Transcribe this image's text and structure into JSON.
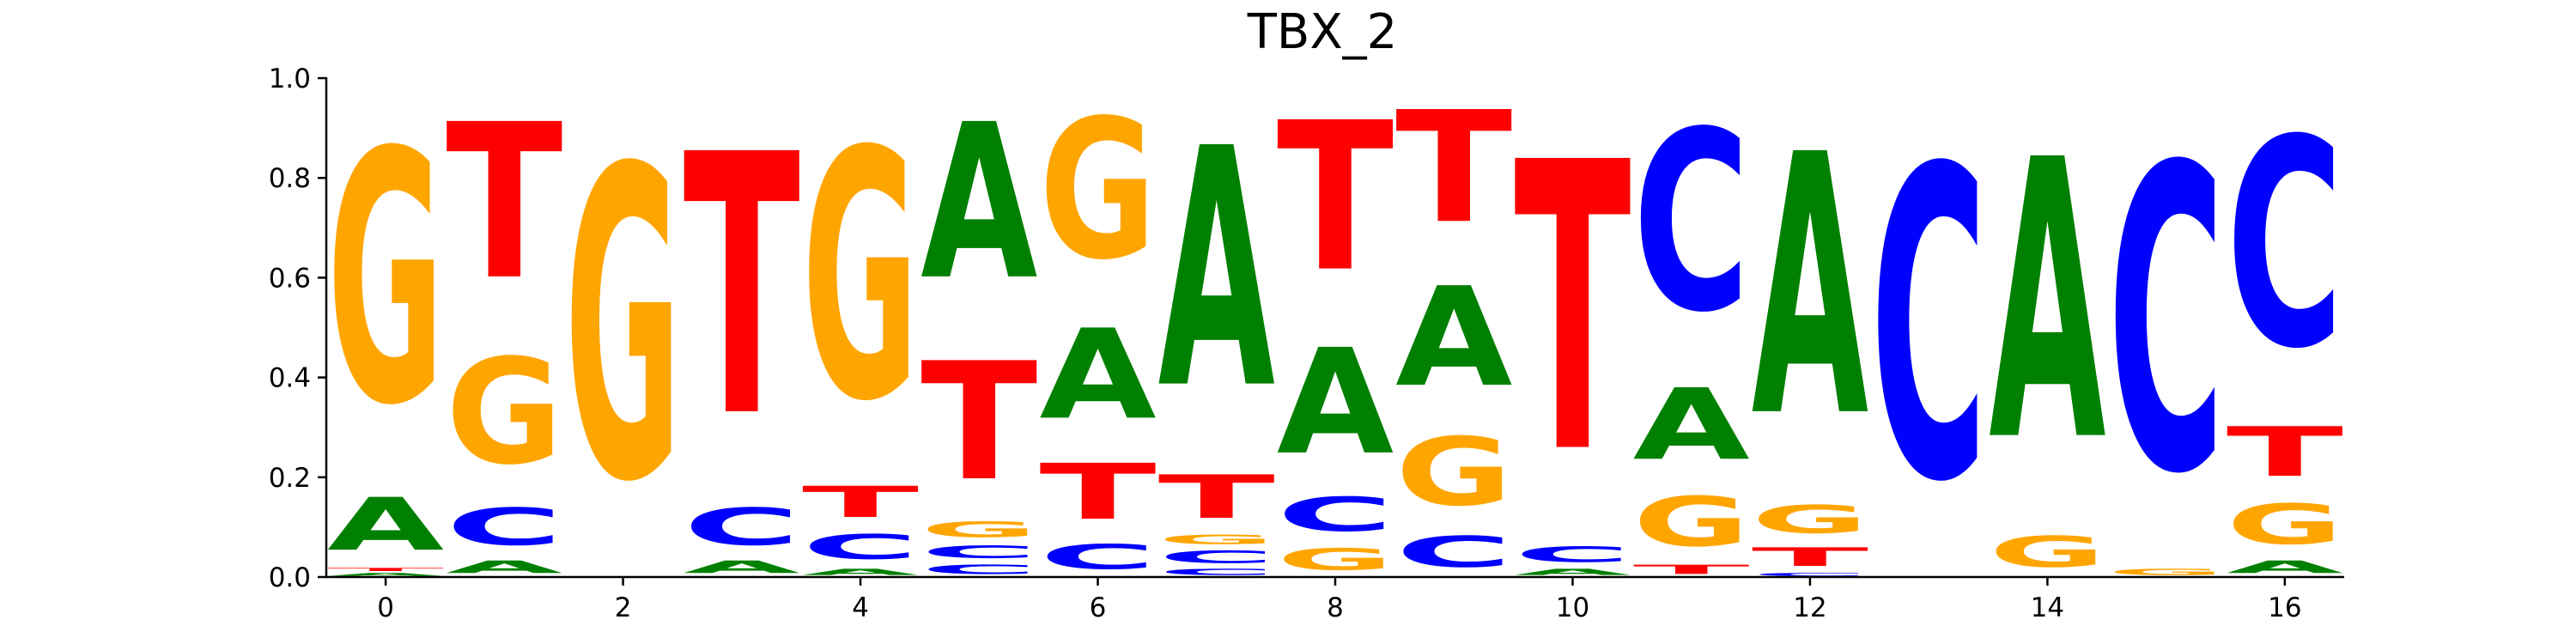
{
  "chart_data": {
    "type": "sequence-logo",
    "title": "TBX_2",
    "xlabel": "",
    "ylabel": "",
    "ylim": [
      0,
      1
    ],
    "xlim": [
      -0.5,
      16.5
    ],
    "x_ticks": [
      0,
      2,
      4,
      6,
      8,
      10,
      12,
      14,
      16
    ],
    "y_ticks": [
      "0.0",
      "0.2",
      "0.4",
      "0.6",
      "0.8",
      "1.0"
    ],
    "grid": false,
    "colors": {
      "A": "#008000",
      "C": "#0000ff",
      "G": "#ffa500",
      "T": "#ff0000"
    },
    "positions": [
      {
        "x": 0,
        "stack": [
          [
            "A",
            0.01
          ],
          [
            "T",
            0.01
          ],
          [
            "A",
            0.17
          ],
          [
            "G",
            0.81
          ]
        ]
      },
      {
        "x": 1,
        "stack": [
          [
            "A",
            0.04
          ],
          [
            "C",
            0.12
          ],
          [
            "G",
            0.34
          ],
          [
            "T",
            0.5
          ]
        ]
      },
      {
        "x": 2,
        "stack": [
          [
            "G",
            1.0
          ]
        ]
      },
      {
        "x": 3,
        "stack": [
          [
            "A",
            0.04
          ],
          [
            "C",
            0.12
          ],
          [
            "T",
            0.84
          ]
        ]
      },
      {
        "x": 4,
        "stack": [
          [
            "A",
            0.02
          ],
          [
            "C",
            0.08
          ],
          [
            "T",
            0.1
          ],
          [
            "G",
            0.8
          ]
        ]
      },
      {
        "x": 5,
        "stack": [
          [
            "C",
            0.03
          ],
          [
            "C",
            0.04
          ],
          [
            "G",
            0.05
          ],
          [
            "T",
            0.38
          ],
          [
            "A",
            0.5
          ]
        ]
      },
      {
        "x": 6,
        "stack": [
          [
            "C",
            0.08
          ],
          [
            "T",
            0.18
          ],
          [
            "A",
            0.29
          ],
          [
            "G",
            0.45
          ]
        ]
      },
      {
        "x": 7,
        "stack": [
          [
            "C",
            0.02
          ],
          [
            "C",
            0.04
          ],
          [
            "G",
            0.03
          ],
          [
            "T",
            0.14
          ],
          [
            "A",
            0.77
          ]
        ]
      },
      {
        "x": 8,
        "stack": [
          [
            "G",
            0.07
          ],
          [
            "C",
            0.11
          ],
          [
            "A",
            0.34
          ],
          [
            "T",
            0.48
          ]
        ]
      },
      {
        "x": 9,
        "stack": [
          [
            "C",
            0.1
          ],
          [
            "G",
            0.22
          ],
          [
            "A",
            0.32
          ],
          [
            "T",
            0.36
          ]
        ]
      },
      {
        "x": 10,
        "stack": [
          [
            "A",
            0.02
          ],
          [
            "C",
            0.05
          ],
          [
            "T",
            0.93
          ]
        ]
      },
      {
        "x": 11,
        "stack": [
          [
            "T",
            0.03
          ],
          [
            "G",
            0.16
          ],
          [
            "A",
            0.23
          ],
          [
            "C",
            0.58
          ]
        ]
      },
      {
        "x": 12,
        "stack": [
          [
            "C",
            0.01
          ],
          [
            "T",
            0.06
          ],
          [
            "G",
            0.09
          ],
          [
            "A",
            0.84
          ]
        ]
      },
      {
        "x": 13,
        "stack": [
          [
            "C",
            1.0
          ]
        ]
      },
      {
        "x": 14,
        "stack": [
          [
            "G",
            0.1
          ],
          [
            "A",
            0.9
          ]
        ]
      },
      {
        "x": 15,
        "stack": [
          [
            "G",
            0.02
          ],
          [
            "C",
            0.98
          ]
        ]
      },
      {
        "x": 16,
        "stack": [
          [
            "A",
            0.04
          ],
          [
            "G",
            0.13
          ],
          [
            "T",
            0.16
          ],
          [
            "C",
            0.67
          ]
        ]
      }
    ]
  }
}
